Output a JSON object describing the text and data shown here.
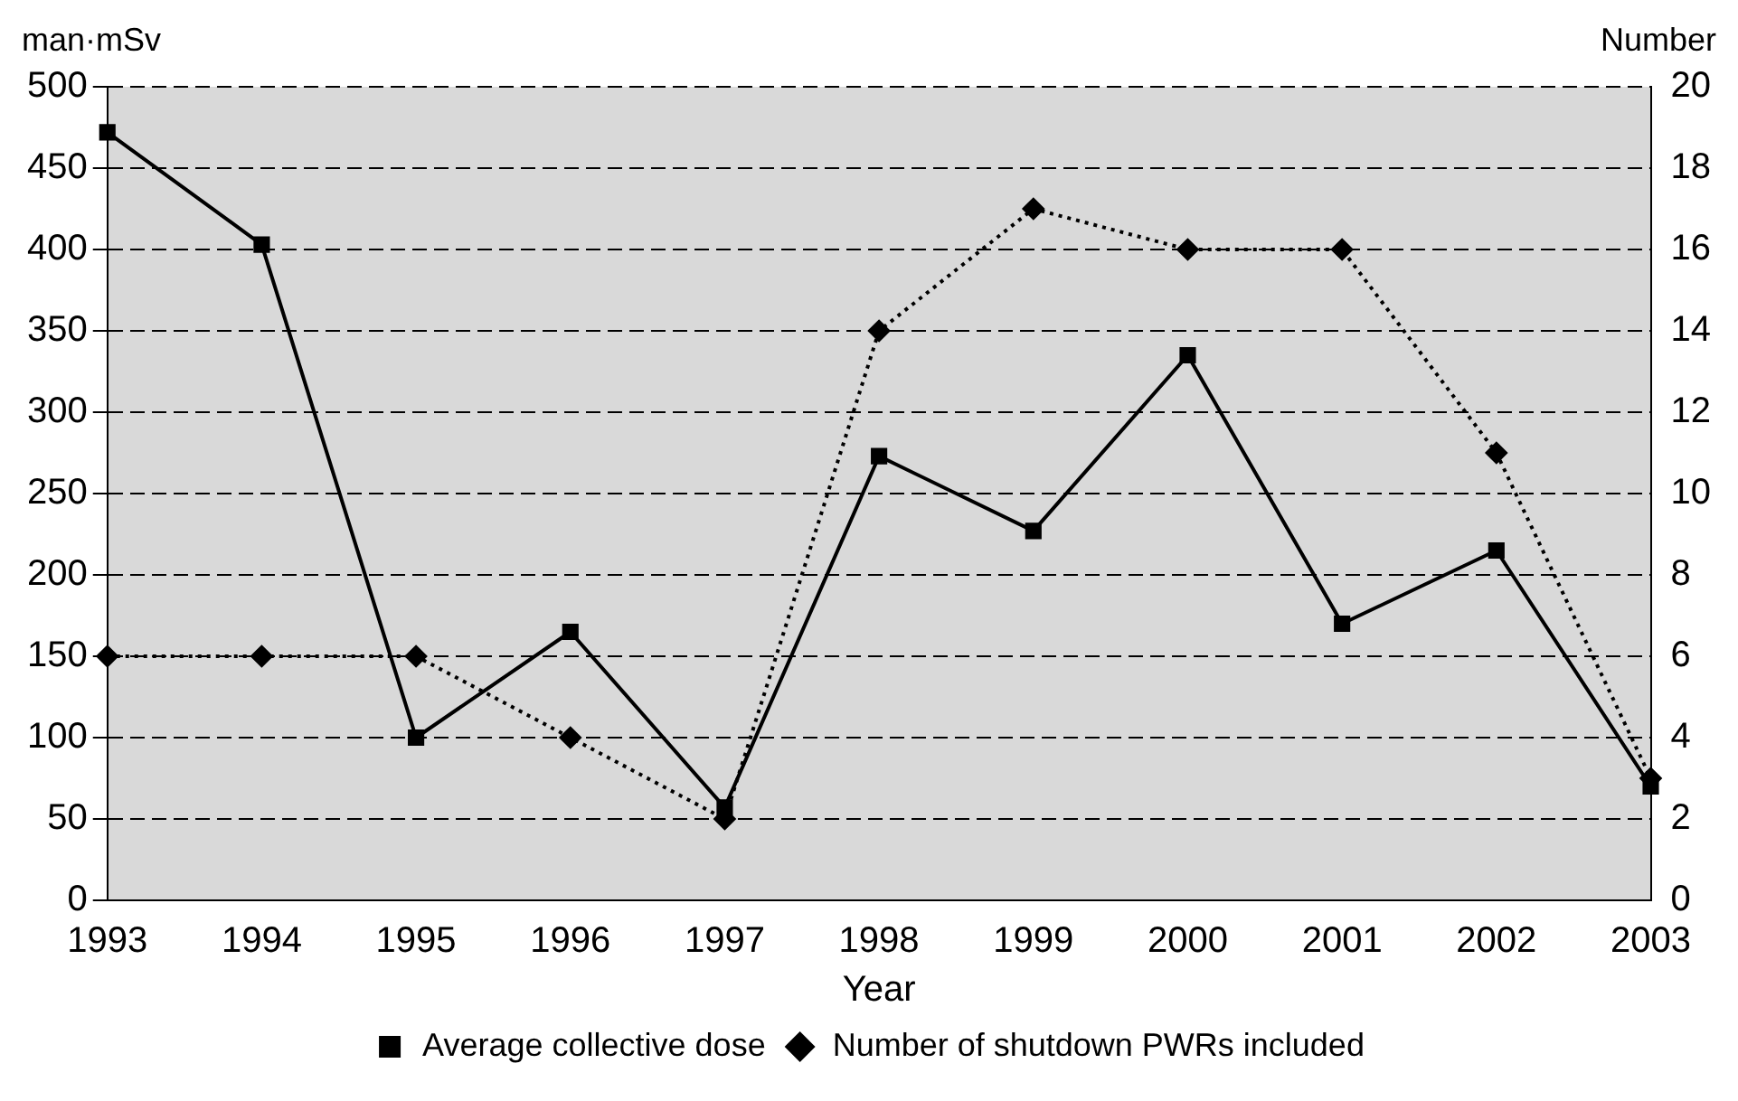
{
  "chart_data": {
    "type": "line",
    "xlabel": "Year",
    "ylabel": "man·mSv",
    "y2label": "Number",
    "categories": [
      "1993",
      "1994",
      "1995",
      "1996",
      "1997",
      "1998",
      "1999",
      "2000",
      "2001",
      "2002",
      "2003"
    ],
    "series": [
      {
        "name": "Average collective dose",
        "color": "#000000",
        "values": [
          472,
          403,
          100,
          165,
          57,
          273,
          227,
          335,
          170,
          215,
          70
        ],
        "marker": "square",
        "line_style": "solid"
      },
      {
        "name": "Number of shutdown PWRs included",
        "color": "#000000",
        "values": [
          6,
          6,
          6,
          4,
          2,
          14,
          17,
          16,
          16,
          11,
          3
        ],
        "axis": "y2",
        "marker": "diamond",
        "line_style": "dotted"
      }
    ],
    "ylim": [
      0,
      500
    ],
    "yticks": [
      0,
      50,
      100,
      150,
      200,
      250,
      300,
      350,
      400,
      450,
      500
    ],
    "y2lim": [
      0,
      20
    ],
    "y2ticks": [
      0,
      2,
      4,
      6,
      8,
      10,
      12,
      14,
      16,
      18,
      20
    ],
    "grid": "y",
    "legend": "bottom"
  }
}
